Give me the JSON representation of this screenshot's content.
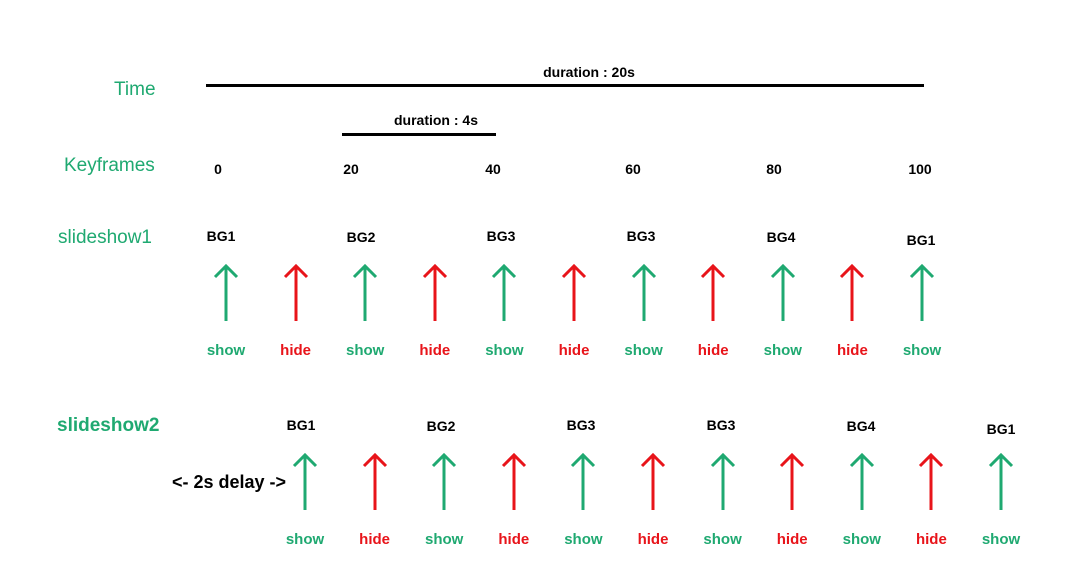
{
  "colors": {
    "show": "#1fa971",
    "hide": "#e8141a",
    "label": "#1fa971",
    "text": "#000000"
  },
  "labels": {
    "time": "Time",
    "keyframes": "Keyframes",
    "slideshow1": "slideshow1",
    "slideshow2": "slideshow2"
  },
  "durations": {
    "total": "duration : 20s",
    "step": "duration : 4s"
  },
  "keyframes": [
    "0",
    "20",
    "40",
    "60",
    "80",
    "100"
  ],
  "slideshow1": {
    "backgrounds": [
      "BG1",
      "BG2",
      "BG3",
      "BG3",
      "BG4",
      "BG1"
    ],
    "events": [
      "show",
      "hide",
      "show",
      "hide",
      "show",
      "hide",
      "show",
      "hide",
      "show",
      "hide",
      "show"
    ]
  },
  "slideshow2": {
    "delay": "<- 2s delay ->",
    "backgrounds": [
      "BG1",
      "BG2",
      "BG3",
      "BG3",
      "BG4",
      "BG1"
    ],
    "events": [
      "show",
      "hide",
      "show",
      "hide",
      "show",
      "hide",
      "show",
      "hide",
      "show",
      "hide",
      "show"
    ]
  }
}
